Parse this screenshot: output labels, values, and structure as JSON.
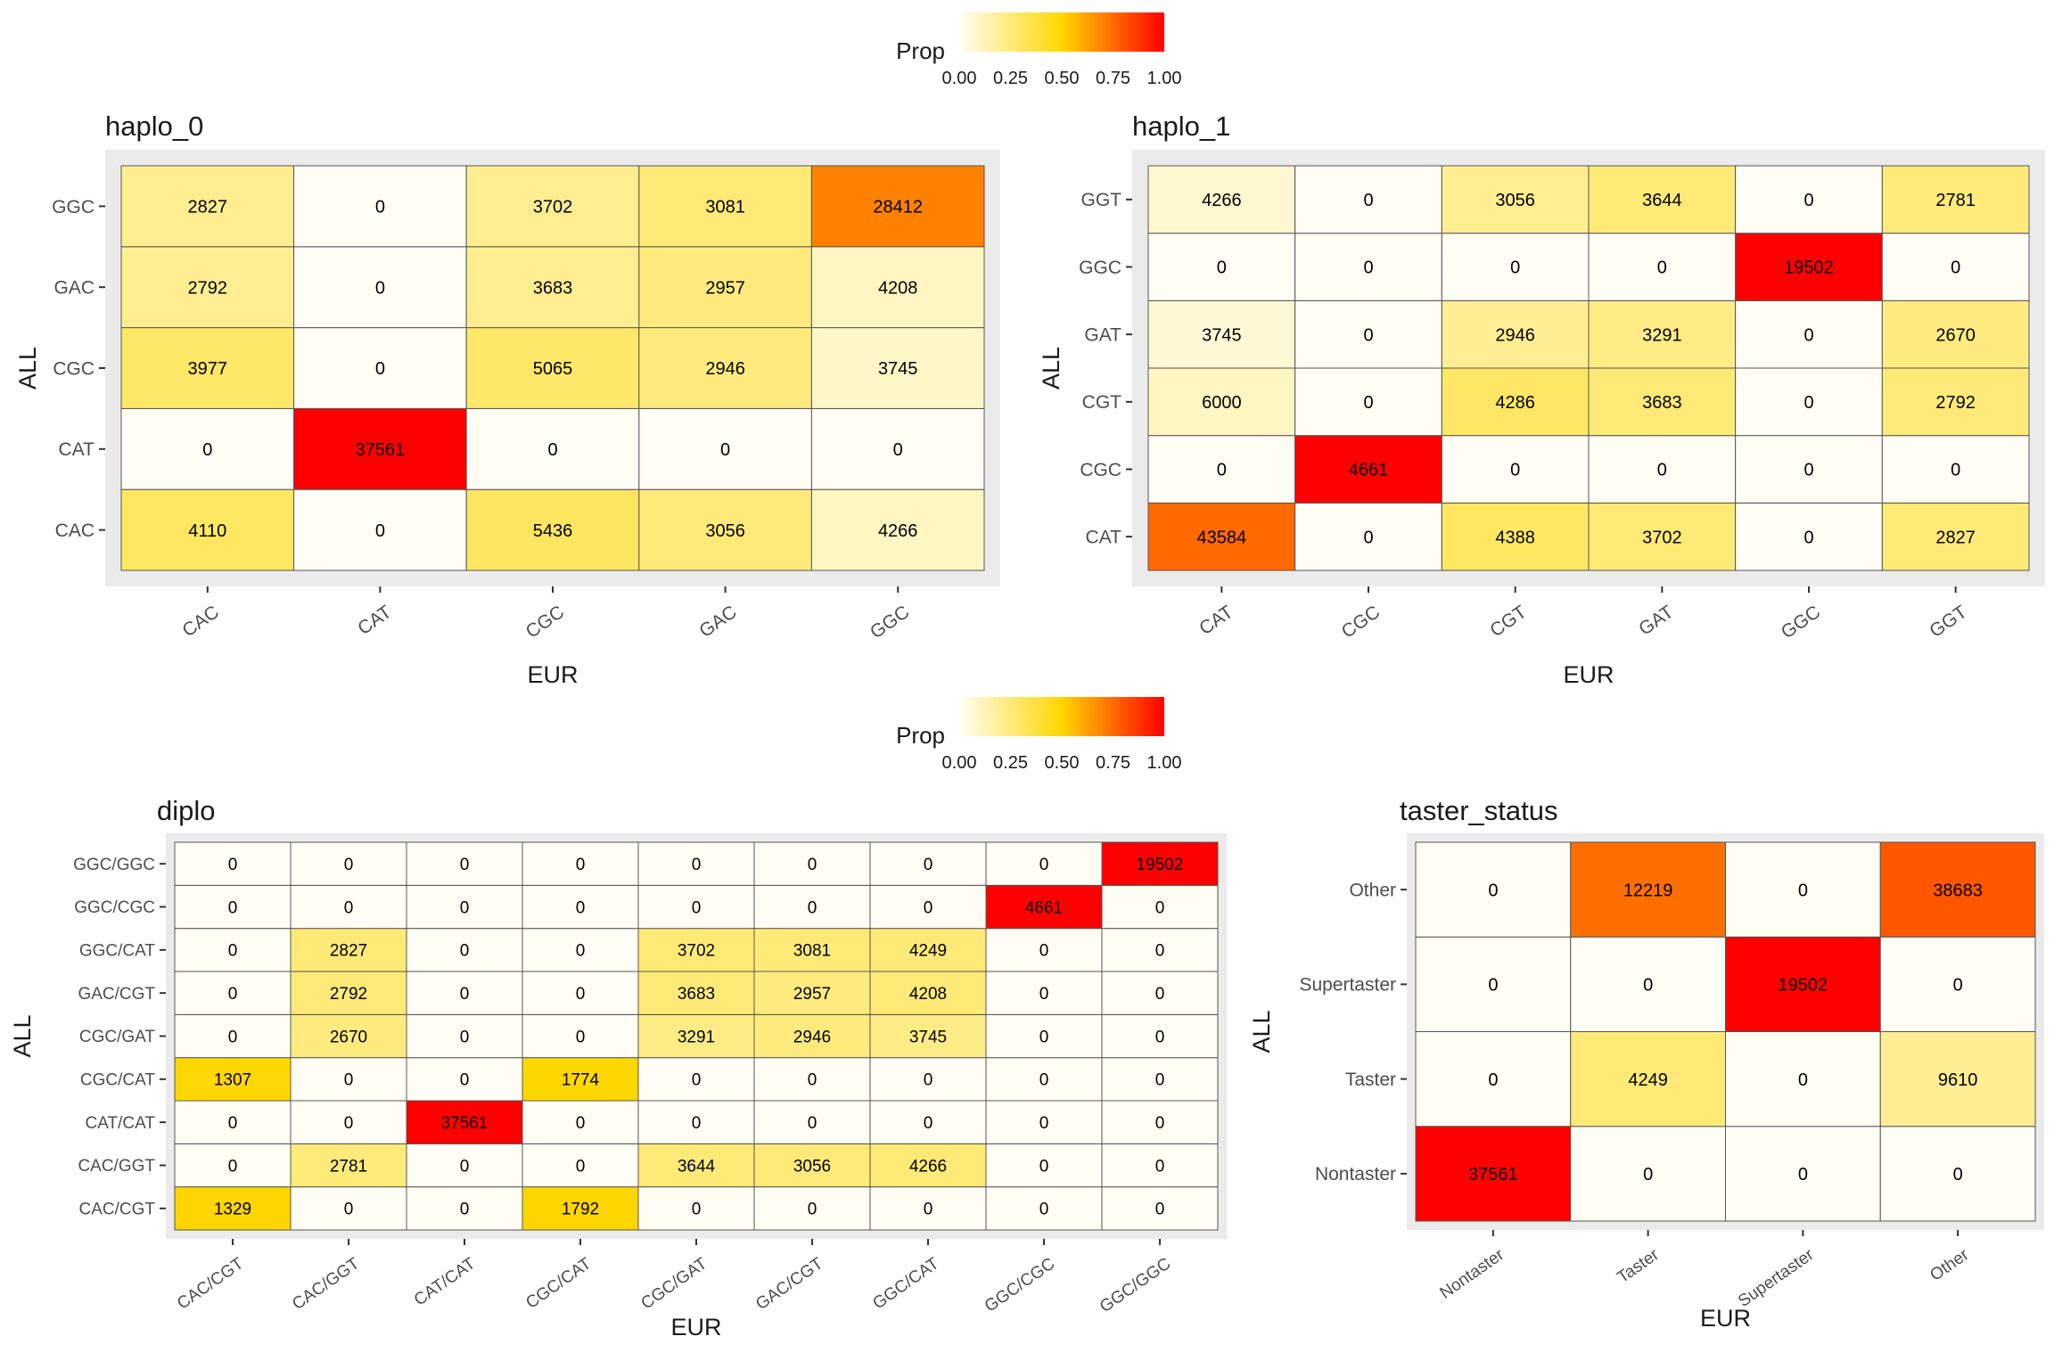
{
  "legend": {
    "title": "Prop",
    "ticks": [
      "0.00",
      "0.25",
      "0.50",
      "0.75",
      "1.00"
    ]
  },
  "chart_data": [
    {
      "type": "heatmap",
      "title": "haplo_0",
      "xlabel": "EUR",
      "ylabel": "ALL",
      "x_categories": [
        "CAC",
        "CAT",
        "CGC",
        "GAC",
        "GGC"
      ],
      "y_categories": [
        "CAC",
        "CAT",
        "CGC",
        "GAC",
        "GGC"
      ],
      "values": [
        [
          4110,
          0,
          5436,
          3056,
          4266
        ],
        [
          0,
          37561,
          0,
          0,
          0
        ],
        [
          3977,
          0,
          5065,
          2946,
          3745
        ],
        [
          2792,
          0,
          3683,
          2957,
          4208
        ],
        [
          2827,
          0,
          3702,
          3081,
          28412
        ]
      ],
      "fill_scale": {
        "name": "Prop",
        "range": [
          0,
          1
        ],
        "colors": [
          "#fffef5",
          "#ffd700",
          "#ff0000"
        ]
      }
    },
    {
      "type": "heatmap",
      "title": "haplo_1",
      "xlabel": "EUR",
      "ylabel": "ALL",
      "x_categories": [
        "CAT",
        "CGC",
        "CGT",
        "GAT",
        "GGC",
        "GGT"
      ],
      "y_categories": [
        "CAT",
        "CGC",
        "CGT",
        "GAT",
        "GGC",
        "GGT"
      ],
      "values": [
        [
          43584,
          0,
          4388,
          3702,
          0,
          2827
        ],
        [
          0,
          4661,
          0,
          0,
          0,
          0
        ],
        [
          6000,
          0,
          4286,
          3683,
          0,
          2792
        ],
        [
          3745,
          0,
          2946,
          3291,
          0,
          2670
        ],
        [
          0,
          0,
          0,
          0,
          19502,
          0
        ],
        [
          4266,
          0,
          3056,
          3644,
          0,
          2781
        ]
      ],
      "fill_scale": {
        "name": "Prop",
        "range": [
          0,
          1
        ],
        "colors": [
          "#fffef5",
          "#ffd700",
          "#ff0000"
        ]
      }
    },
    {
      "type": "heatmap",
      "title": "diplo",
      "xlabel": "EUR",
      "ylabel": "ALL",
      "x_categories": [
        "CAC/CGT",
        "CAC/GGT",
        "CAT/CAT",
        "CGC/CAT",
        "CGC/GAT",
        "GAC/CGT",
        "GGC/CAT",
        "GGC/CGC",
        "GGC/GGC"
      ],
      "y_categories": [
        "CAC/CGT",
        "CAC/GGT",
        "CAT/CAT",
        "CGC/CAT",
        "CGC/GAT",
        "GAC/CGT",
        "GGC/CAT",
        "GGC/CGC",
        "GGC/GGC"
      ],
      "values": [
        [
          1329,
          0,
          0,
          1792,
          0,
          0,
          0,
          0,
          0
        ],
        [
          0,
          2781,
          0,
          0,
          3644,
          3056,
          4266,
          0,
          0
        ],
        [
          0,
          0,
          37561,
          0,
          0,
          0,
          0,
          0,
          0
        ],
        [
          1307,
          0,
          0,
          1774,
          0,
          0,
          0,
          0,
          0
        ],
        [
          0,
          2670,
          0,
          0,
          3291,
          2946,
          3745,
          0,
          0
        ],
        [
          0,
          2792,
          0,
          0,
          3683,
          2957,
          4208,
          0,
          0
        ],
        [
          0,
          2827,
          0,
          0,
          3702,
          3081,
          4249,
          0,
          0
        ],
        [
          0,
          0,
          0,
          0,
          0,
          0,
          0,
          4661,
          0
        ],
        [
          0,
          0,
          0,
          0,
          0,
          0,
          0,
          0,
          19502
        ]
      ],
      "fill_scale": {
        "name": "Prop",
        "range": [
          0,
          1
        ],
        "colors": [
          "#fffef5",
          "#ffd700",
          "#ff0000"
        ]
      }
    },
    {
      "type": "heatmap",
      "title": "taster_status",
      "xlabel": "EUR",
      "ylabel": "ALL",
      "x_categories": [
        "Nontaster",
        "Taster",
        "Supertaster",
        "Other"
      ],
      "y_categories": [
        "Nontaster",
        "Taster",
        "Supertaster",
        "Other"
      ],
      "values": [
        [
          37561,
          0,
          0,
          0
        ],
        [
          0,
          4249,
          0,
          9610
        ],
        [
          0,
          0,
          19502,
          0
        ],
        [
          0,
          12219,
          0,
          38683
        ]
      ],
      "fill_scale": {
        "name": "Prop",
        "range": [
          0,
          1
        ],
        "colors": [
          "#fffef5",
          "#ffd700",
          "#ff0000"
        ]
      }
    }
  ]
}
